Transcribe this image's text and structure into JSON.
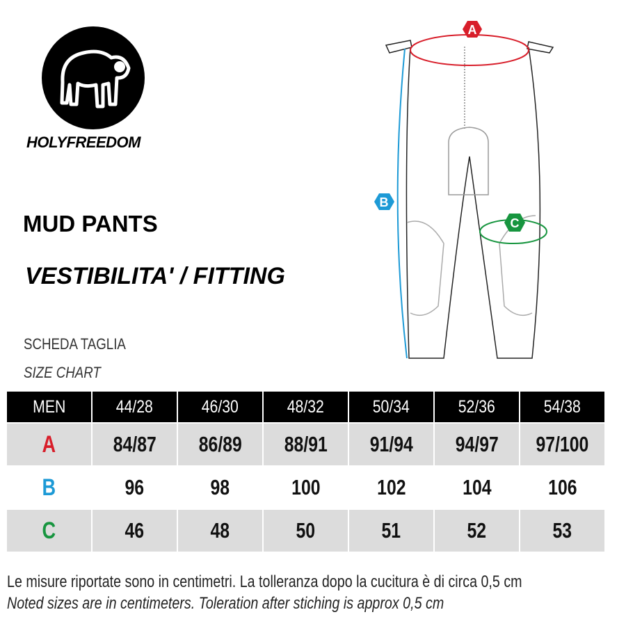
{
  "brand": {
    "name": "HOLYFREEDOM",
    "logo_icon": "sheep-logo-icon"
  },
  "title": "MUD PANTS",
  "subtitle": "VESTIBILITA' / FITTING",
  "size_chart": {
    "title_it": "SCHEDA TAGLIA",
    "title_en": "SIZE CHART"
  },
  "diagram": {
    "labels": [
      "A",
      "B",
      "C"
    ],
    "colors": {
      "A": "#d81e2a",
      "B": "#1d9ad6",
      "C": "#17953f"
    }
  },
  "table": {
    "header": [
      "MEN",
      "44/28",
      "46/30",
      "48/32",
      "50/34",
      "52/36",
      "54/38"
    ],
    "rows": [
      {
        "label": "A",
        "values": [
          "84/87",
          "86/89",
          "88/91",
          "91/94",
          "94/97",
          "97/100"
        ]
      },
      {
        "label": "B",
        "values": [
          "96",
          "98",
          "100",
          "102",
          "104",
          "106"
        ]
      },
      {
        "label": "C",
        "values": [
          "46",
          "48",
          "50",
          "51",
          "52",
          "53"
        ]
      }
    ]
  },
  "notes": {
    "it": "Le misure riportate sono in centimetri. La tolleranza dopo la cucitura è di circa 0,5 cm",
    "en": "Noted sizes are in centimeters. Toleration after stiching is approx 0,5 cm"
  }
}
